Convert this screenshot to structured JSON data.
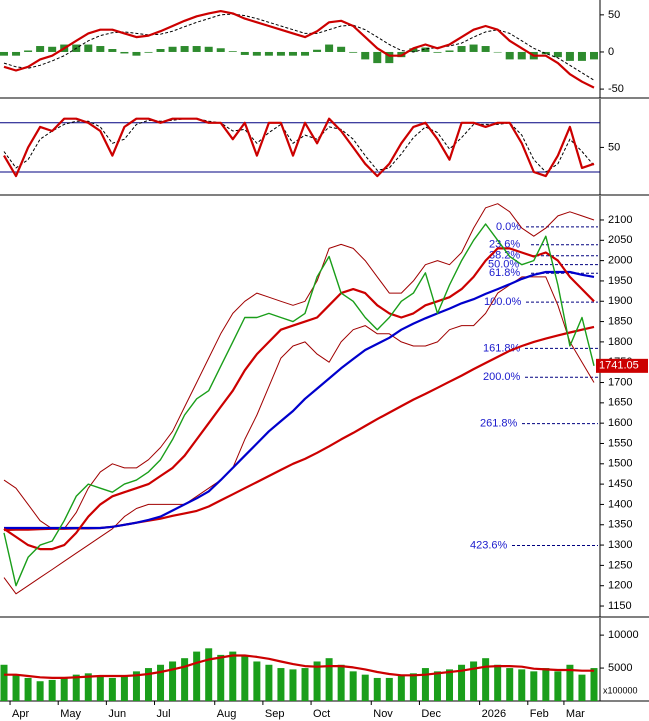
{
  "chart_data": [
    {
      "type": "macd",
      "ylim": [
        -62,
        70
      ],
      "yticks": [
        50,
        0,
        -50
      ],
      "series": [
        {
          "style": "bar",
          "color": "#2e8b2e",
          "values": [
            -5,
            -5,
            2,
            8,
            7,
            10,
            10,
            10,
            8,
            4,
            -2,
            -5,
            -1,
            4,
            7,
            8,
            8,
            7,
            5,
            1,
            -4,
            -5,
            -5,
            -5,
            -5,
            -5,
            3,
            10,
            7,
            -1,
            -10,
            -15,
            -15,
            -7,
            5,
            6,
            -1,
            2,
            8,
            10,
            8,
            0,
            -10,
            -10,
            -10,
            -3,
            -7,
            -12,
            -12,
            -10
          ]
        },
        {
          "style": "dashed",
          "color": "#000000",
          "values": [
            -15,
            -20,
            -22,
            -18,
            -12,
            -5,
            5,
            15,
            22,
            26,
            27,
            25,
            23,
            24,
            28,
            34,
            40,
            45,
            50,
            51,
            49,
            45,
            40,
            35,
            30,
            25,
            25,
            30,
            35,
            36,
            30,
            20,
            10,
            2,
            0,
            4,
            6,
            8,
            12,
            20,
            27,
            30,
            25,
            15,
            5,
            -2,
            -8,
            -18,
            -28,
            -38
          ]
        },
        {
          "style": "line",
          "color": "#cc0000",
          "values": [
            -20,
            -25,
            -20,
            -10,
            -5,
            5,
            15,
            25,
            30,
            30,
            25,
            20,
            22,
            28,
            35,
            42,
            48,
            52,
            55,
            52,
            45,
            40,
            35,
            30,
            25,
            20,
            28,
            40,
            42,
            35,
            20,
            5,
            -5,
            -5,
            5,
            10,
            5,
            10,
            20,
            30,
            35,
            30,
            15,
            5,
            -5,
            -5,
            -15,
            -30,
            -40,
            -48
          ]
        }
      ]
    },
    {
      "type": "oscillator",
      "ylim": [
        -8,
        109
      ],
      "yticks": [
        50
      ],
      "levels": [
        20,
        80
      ],
      "level_color": "#000080",
      "series": [
        {
          "style": "dashed",
          "color": "#000000",
          "values": [
            45,
            25,
            35,
            60,
            70,
            78,
            82,
            82,
            75,
            55,
            60,
            78,
            83,
            82,
            83,
            85,
            85,
            82,
            80,
            70,
            72,
            55,
            68,
            78,
            55,
            65,
            60,
            75,
            72,
            60,
            40,
            22,
            25,
            42,
            62,
            75,
            68,
            48,
            62,
            78,
            78,
            78,
            80,
            65,
            35,
            20,
            30,
            60,
            45,
            28
          ]
        },
        {
          "style": "line",
          "color": "#cc0000",
          "values": [
            40,
            15,
            50,
            75,
            70,
            85,
            85,
            80,
            70,
            40,
            75,
            85,
            85,
            80,
            85,
            85,
            85,
            80,
            80,
            60,
            80,
            40,
            80,
            80,
            40,
            80,
            55,
            85,
            70,
            50,
            30,
            15,
            30,
            55,
            75,
            80,
            60,
            35,
            80,
            80,
            75,
            80,
            80,
            55,
            20,
            15,
            40,
            75,
            25,
            30
          ]
        }
      ]
    },
    {
      "type": "price",
      "ylim": [
        1123,
        2159
      ],
      "yticks": [
        1150,
        1200,
        1250,
        1300,
        1350,
        1400,
        1450,
        1500,
        1550,
        1600,
        1650,
        1700,
        1750,
        1800,
        1850,
        1900,
        1950,
        2000,
        2050,
        2100
      ],
      "last_price": 1741.05,
      "last_price_color": "#cc0000",
      "fib_color": "#1a1acc",
      "fib_levels": [
        {
          "label": "0.0%",
          "value": 2083
        },
        {
          "label": "23.6%",
          "value": 2039
        },
        {
          "label": "38.2%",
          "value": 2012
        },
        {
          "label": "50.0%",
          "value": 1990
        },
        {
          "label": "61.8%",
          "value": 1969
        },
        {
          "label": "100.0%",
          "value": 1898
        },
        {
          "label": "161.8%",
          "value": 1784
        },
        {
          "label": "200.0%",
          "value": 1713
        },
        {
          "label": "261.8%",
          "value": 1599
        },
        {
          "label": "423.6%",
          "value": 1299
        }
      ],
      "series": [
        {
          "style": "thin",
          "color": "#a00000",
          "values": [
            1460,
            1440,
            1400,
            1360,
            1340,
            1340,
            1380,
            1440,
            1480,
            1500,
            1490,
            1490,
            1510,
            1540,
            1580,
            1640,
            1700,
            1760,
            1820,
            1870,
            1900,
            1920,
            1910,
            1900,
            1890,
            1900,
            1950,
            2030,
            2040,
            2030,
            2000,
            1960,
            1920,
            1920,
            1950,
            1990,
            2000,
            1990,
            2020,
            2080,
            2130,
            2140,
            2120,
            2080,
            2060,
            2080,
            2110,
            2120,
            2110,
            2100
          ]
        },
        {
          "style": "thin",
          "color": "#a00000",
          "values": [
            1220,
            1180,
            1200,
            1220,
            1240,
            1260,
            1280,
            1300,
            1320,
            1340,
            1370,
            1390,
            1400,
            1400,
            1400,
            1400,
            1420,
            1440,
            1460,
            1490,
            1560,
            1620,
            1690,
            1760,
            1790,
            1800,
            1770,
            1750,
            1800,
            1830,
            1840,
            1820,
            1820,
            1800,
            1790,
            1790,
            1800,
            1830,
            1840,
            1840,
            1870,
            1920,
            1940,
            1960,
            1960,
            1960,
            1890,
            1800,
            1750,
            1700
          ]
        },
        {
          "style": "line",
          "color": "#cc0000",
          "values": [
            1337,
            1338,
            1338,
            1339,
            1340,
            1340,
            1341,
            1341,
            1342,
            1345,
            1350,
            1355,
            1360,
            1365,
            1372,
            1378,
            1384,
            1395,
            1410,
            1425,
            1440,
            1455,
            1470,
            1485,
            1500,
            1512,
            1527,
            1543,
            1560,
            1576,
            1593,
            1610,
            1626,
            1642,
            1658,
            1672,
            1687,
            1702,
            1717,
            1733,
            1748,
            1763,
            1778,
            1790,
            1800,
            1808,
            1816,
            1823,
            1830,
            1837
          ]
        },
        {
          "style": "line",
          "color": "#0000cc",
          "values": [
            1342,
            1342,
            1342,
            1342,
            1342,
            1342,
            1342,
            1342,
            1342,
            1345,
            1350,
            1355,
            1362,
            1370,
            1385,
            1400,
            1415,
            1432,
            1460,
            1490,
            1520,
            1550,
            1580,
            1605,
            1630,
            1660,
            1685,
            1710,
            1735,
            1758,
            1780,
            1795,
            1810,
            1830,
            1845,
            1858,
            1870,
            1882,
            1895,
            1905,
            1918,
            1930,
            1942,
            1955,
            1965,
            1972,
            1972,
            1972,
            1965,
            1960
          ]
        },
        {
          "style": "line",
          "color": "#cc0000",
          "values": [
            1340,
            1320,
            1300,
            1290,
            1290,
            1300,
            1330,
            1370,
            1400,
            1420,
            1430,
            1440,
            1450,
            1470,
            1490,
            1520,
            1560,
            1600,
            1640,
            1680,
            1730,
            1770,
            1800,
            1830,
            1840,
            1850,
            1860,
            1890,
            1920,
            1930,
            1920,
            1890,
            1870,
            1860,
            1870,
            1890,
            1900,
            1910,
            1930,
            1960,
            2000,
            2030,
            2030,
            2020,
            2010,
            2020,
            2000,
            1960,
            1930,
            1900
          ]
        },
        {
          "style": "price",
          "color": "#1a9e1a",
          "values": [
            1330,
            1200,
            1270,
            1300,
            1310,
            1360,
            1420,
            1450,
            1440,
            1430,
            1450,
            1460,
            1480,
            1510,
            1560,
            1620,
            1660,
            1680,
            1740,
            1800,
            1860,
            1860,
            1870,
            1860,
            1850,
            1870,
            1960,
            2010,
            1920,
            1900,
            1860,
            1830,
            1860,
            1900,
            1920,
            1970,
            1870,
            1940,
            2000,
            2050,
            2090,
            2050,
            2010,
            1990,
            2000,
            2060,
            1940,
            1790,
            1860,
            1741.05
          ]
        }
      ]
    },
    {
      "type": "volume",
      "ylim": [
        0,
        12600
      ],
      "yticks": [
        10000,
        5000
      ],
      "unit": "x100000",
      "categories": [
        null,
        "Apr",
        null,
        null,
        null,
        "May",
        null,
        null,
        null,
        "Jun",
        null,
        null,
        null,
        "Jul",
        null,
        null,
        null,
        null,
        "Aug",
        null,
        null,
        null,
        "Sep",
        null,
        null,
        null,
        "Oct",
        null,
        null,
        null,
        null,
        "Nov",
        null,
        null,
        null,
        "Dec",
        null,
        null,
        null,
        null,
        "2026",
        null,
        null,
        null,
        "Feb",
        null,
        null,
        "Mar",
        null,
        null
      ],
      "series": [
        {
          "style": "bar",
          "color": "#1a9e1a",
          "values": [
            5500,
            4000,
            3500,
            3000,
            3200,
            3500,
            4000,
            4200,
            3800,
            3500,
            3800,
            4500,
            5000,
            5500,
            6000,
            6500,
            7500,
            8000,
            7000,
            7500,
            6800,
            6000,
            5500,
            5000,
            4800,
            5000,
            6000,
            6500,
            5500,
            4500,
            4000,
            3500,
            3500,
            4000,
            4200,
            5000,
            4500,
            4800,
            5500,
            6000,
            6500,
            5500,
            5000,
            4800,
            4500,
            5000,
            4500,
            5500,
            4000,
            5000
          ]
        },
        {
          "style": "line",
          "color": "#cc0000",
          "values": [
            4000,
            4000,
            3800,
            3600,
            3500,
            3500,
            3600,
            3700,
            3800,
            3800,
            3800,
            3900,
            4100,
            4400,
            4800,
            5200,
            5800,
            6300,
            6600,
            6900,
            6900,
            6700,
            6400,
            6000,
            5600,
            5300,
            5200,
            5300,
            5300,
            5100,
            4800,
            4400,
            4100,
            3900,
            3900,
            4000,
            4200,
            4400,
            4600,
            4900,
            5200,
            5300,
            5300,
            5200,
            4900,
            4800,
            4700,
            4700,
            4600,
            4600
          ]
        }
      ]
    }
  ]
}
